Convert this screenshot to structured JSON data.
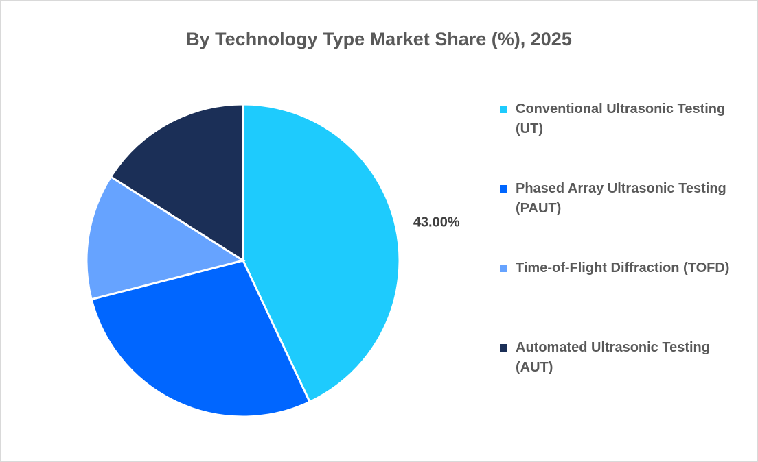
{
  "chart_data": {
    "type": "pie",
    "title": "By Technology Type Market Share (%), 2025",
    "categories": [
      "Conventional Ultrasonic Testing (UT)",
      "Phased Array Ultrasonic Testing (PAUT)",
      "Time-of-Flight Diffraction (TOFD)",
      "Automated Ultrasonic Testing (AUT)"
    ],
    "values": [
      43,
      28,
      13,
      16
    ],
    "colors": [
      "#1ECBFD",
      "#0066FF",
      "#66A3FF",
      "#1B2F57"
    ],
    "data_labels": [
      "43.00%",
      null,
      null,
      null
    ],
    "legend_position": "right",
    "start_angle": "top, clockwise"
  }
}
